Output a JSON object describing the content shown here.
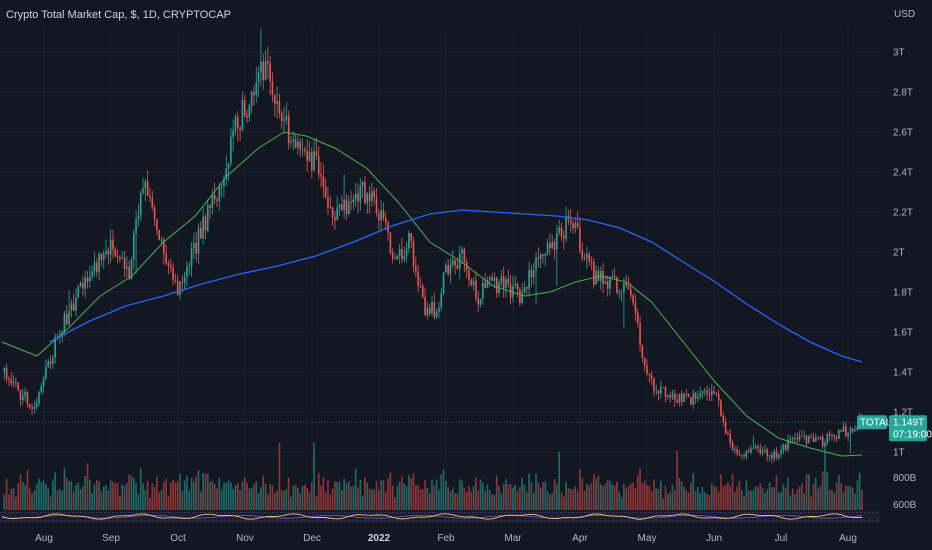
{
  "header": {
    "title": "Crypto Total Market Cap, $, 1D, CRYPTOCAP"
  },
  "chart_data": {
    "type": "candlestick",
    "symbol": "TOTAL",
    "currency_label": "USD",
    "ylim": [
      0.88,
      3.2
    ],
    "y_ticks": [
      {
        "value": 1.0,
        "label": "1T"
      },
      {
        "value": 1.2,
        "label": "1.2T"
      },
      {
        "value": 1.4,
        "label": "1.4T"
      },
      {
        "value": 1.6,
        "label": "1.6T"
      },
      {
        "value": 1.8,
        "label": "1.8T"
      },
      {
        "value": 2.0,
        "label": "2T"
      },
      {
        "value": 2.2,
        "label": "2.2T"
      },
      {
        "value": 2.4,
        "label": "2.4T"
      },
      {
        "value": 2.6,
        "label": "2.6T"
      },
      {
        "value": 2.8,
        "label": "2.8T"
      },
      {
        "value": 3.0,
        "label": "3T"
      }
    ],
    "x_ticks": [
      {
        "month": 1,
        "label": "Aug"
      },
      {
        "month": 2,
        "label": "Sep"
      },
      {
        "month": 3,
        "label": "Oct"
      },
      {
        "month": 4,
        "label": "Nov"
      },
      {
        "month": 5,
        "label": "Dec"
      },
      {
        "month": 6,
        "label": "2022"
      },
      {
        "month": 7,
        "label": "Feb"
      },
      {
        "month": 8,
        "label": "Mar"
      },
      {
        "month": 9,
        "label": "Apr"
      },
      {
        "month": 10,
        "label": "May"
      },
      {
        "month": 11,
        "label": "Jun"
      },
      {
        "month": 12,
        "label": "Jul"
      },
      {
        "month": 13,
        "label": "Aug"
      }
    ],
    "x_range_months": [
      0.05,
      13.62
    ],
    "key_points": [
      [
        0.05,
        1.4
      ],
      [
        0.55,
        1.22
      ],
      [
        0.95,
        1.6
      ],
      [
        1.35,
        1.85
      ],
      [
        1.75,
        2.02
      ],
      [
        2.05,
        1.9
      ],
      [
        2.3,
        2.35
      ],
      [
        2.55,
        2.05
      ],
      [
        2.85,
        1.8
      ],
      [
        3.15,
        2.08
      ],
      [
        3.45,
        2.3
      ],
      [
        3.75,
        2.65
      ],
      [
        4.05,
        2.8
      ],
      [
        4.2,
        2.95
      ],
      [
        4.4,
        2.72
      ],
      [
        4.6,
        2.58
      ],
      [
        4.8,
        2.55
      ],
      [
        5.05,
        2.4
      ],
      [
        5.3,
        2.15
      ],
      [
        5.5,
        2.25
      ],
      [
        5.75,
        2.3
      ],
      [
        6.05,
        2.18
      ],
      [
        6.25,
        1.98
      ],
      [
        6.5,
        2.05
      ],
      [
        6.7,
        1.72
      ],
      [
        6.9,
        1.72
      ],
      [
        7.1,
        1.95
      ],
      [
        7.3,
        1.98
      ],
      [
        7.55,
        1.78
      ],
      [
        7.8,
        1.85
      ],
      [
        8.05,
        1.82
      ],
      [
        8.25,
        1.78
      ],
      [
        8.5,
        1.95
      ],
      [
        8.75,
        2.05
      ],
      [
        9.0,
        2.15
      ],
      [
        9.2,
        2.03
      ],
      [
        9.4,
        1.88
      ],
      [
        9.6,
        1.85
      ],
      [
        9.85,
        1.82
      ],
      [
        10.05,
        1.7
      ],
      [
        10.2,
        1.38
      ],
      [
        10.45,
        1.3
      ],
      [
        10.7,
        1.28
      ],
      [
        10.95,
        1.27
      ],
      [
        11.15,
        1.32
      ],
      [
        11.35,
        1.25
      ],
      [
        11.55,
        1.03
      ],
      [
        11.75,
        0.97
      ],
      [
        12.0,
        1.02
      ],
      [
        12.25,
        0.98
      ],
      [
        12.5,
        1.05
      ],
      [
        12.75,
        1.06
      ],
      [
        13.0,
        1.05
      ],
      [
        13.3,
        1.1
      ],
      [
        13.62,
        1.149
      ]
    ],
    "ma_short_points": [
      [
        0.05,
        1.55
      ],
      [
        0.6,
        1.48
      ],
      [
        1.1,
        1.62
      ],
      [
        1.6,
        1.78
      ],
      [
        2.1,
        1.88
      ],
      [
        2.6,
        2.05
      ],
      [
        3.1,
        2.18
      ],
      [
        3.6,
        2.38
      ],
      [
        4.1,
        2.52
      ],
      [
        4.5,
        2.6
      ],
      [
        4.85,
        2.58
      ],
      [
        5.3,
        2.52
      ],
      [
        5.8,
        2.42
      ],
      [
        6.3,
        2.25
      ],
      [
        6.8,
        2.05
      ],
      [
        7.3,
        1.95
      ],
      [
        7.8,
        1.83
      ],
      [
        8.3,
        1.78
      ],
      [
        8.7,
        1.8
      ],
      [
        9.1,
        1.85
      ],
      [
        9.5,
        1.88
      ],
      [
        9.9,
        1.85
      ],
      [
        10.3,
        1.75
      ],
      [
        10.8,
        1.55
      ],
      [
        11.3,
        1.35
      ],
      [
        11.8,
        1.18
      ],
      [
        12.3,
        1.07
      ],
      [
        12.8,
        1.02
      ],
      [
        13.3,
        0.98
      ],
      [
        13.62,
        0.985
      ]
    ],
    "ma_long_points": [
      [
        0.8,
        1.55
      ],
      [
        1.4,
        1.65
      ],
      [
        2.0,
        1.73
      ],
      [
        2.6,
        1.78
      ],
      [
        3.2,
        1.84
      ],
      [
        3.8,
        1.89
      ],
      [
        4.4,
        1.93
      ],
      [
        5.0,
        1.98
      ],
      [
        5.6,
        2.05
      ],
      [
        6.2,
        2.13
      ],
      [
        6.8,
        2.19
      ],
      [
        7.3,
        2.21
      ],
      [
        7.8,
        2.2
      ],
      [
        8.3,
        2.19
      ],
      [
        8.8,
        2.18
      ],
      [
        9.3,
        2.16
      ],
      [
        9.8,
        2.12
      ],
      [
        10.3,
        2.05
      ],
      [
        10.8,
        1.95
      ],
      [
        11.3,
        1.85
      ],
      [
        11.8,
        1.74
      ],
      [
        12.3,
        1.64
      ],
      [
        12.8,
        1.55
      ],
      [
        13.3,
        1.48
      ],
      [
        13.62,
        1.45
      ]
    ],
    "last_price": {
      "label": "TOTAL",
      "value_label": "1.149T",
      "countdown": "07:19:00",
      "value": 1.149
    },
    "volume_ticks": [
      {
        "value": 800,
        "label": "800B"
      },
      {
        "value": 600,
        "label": "600B"
      }
    ],
    "volume_range": [
      560,
      1080
    ],
    "colors": {
      "background": "#131722",
      "grid": "#1e222d",
      "up": "#26a69a",
      "down": "#ef5350",
      "up_volume": "#1f7d74",
      "down_volume": "#a83b3b",
      "ma_short": "#4caf50",
      "ma_long": "#2962ff",
      "text": "#b2b5be",
      "badge": "#26a69a"
    }
  }
}
